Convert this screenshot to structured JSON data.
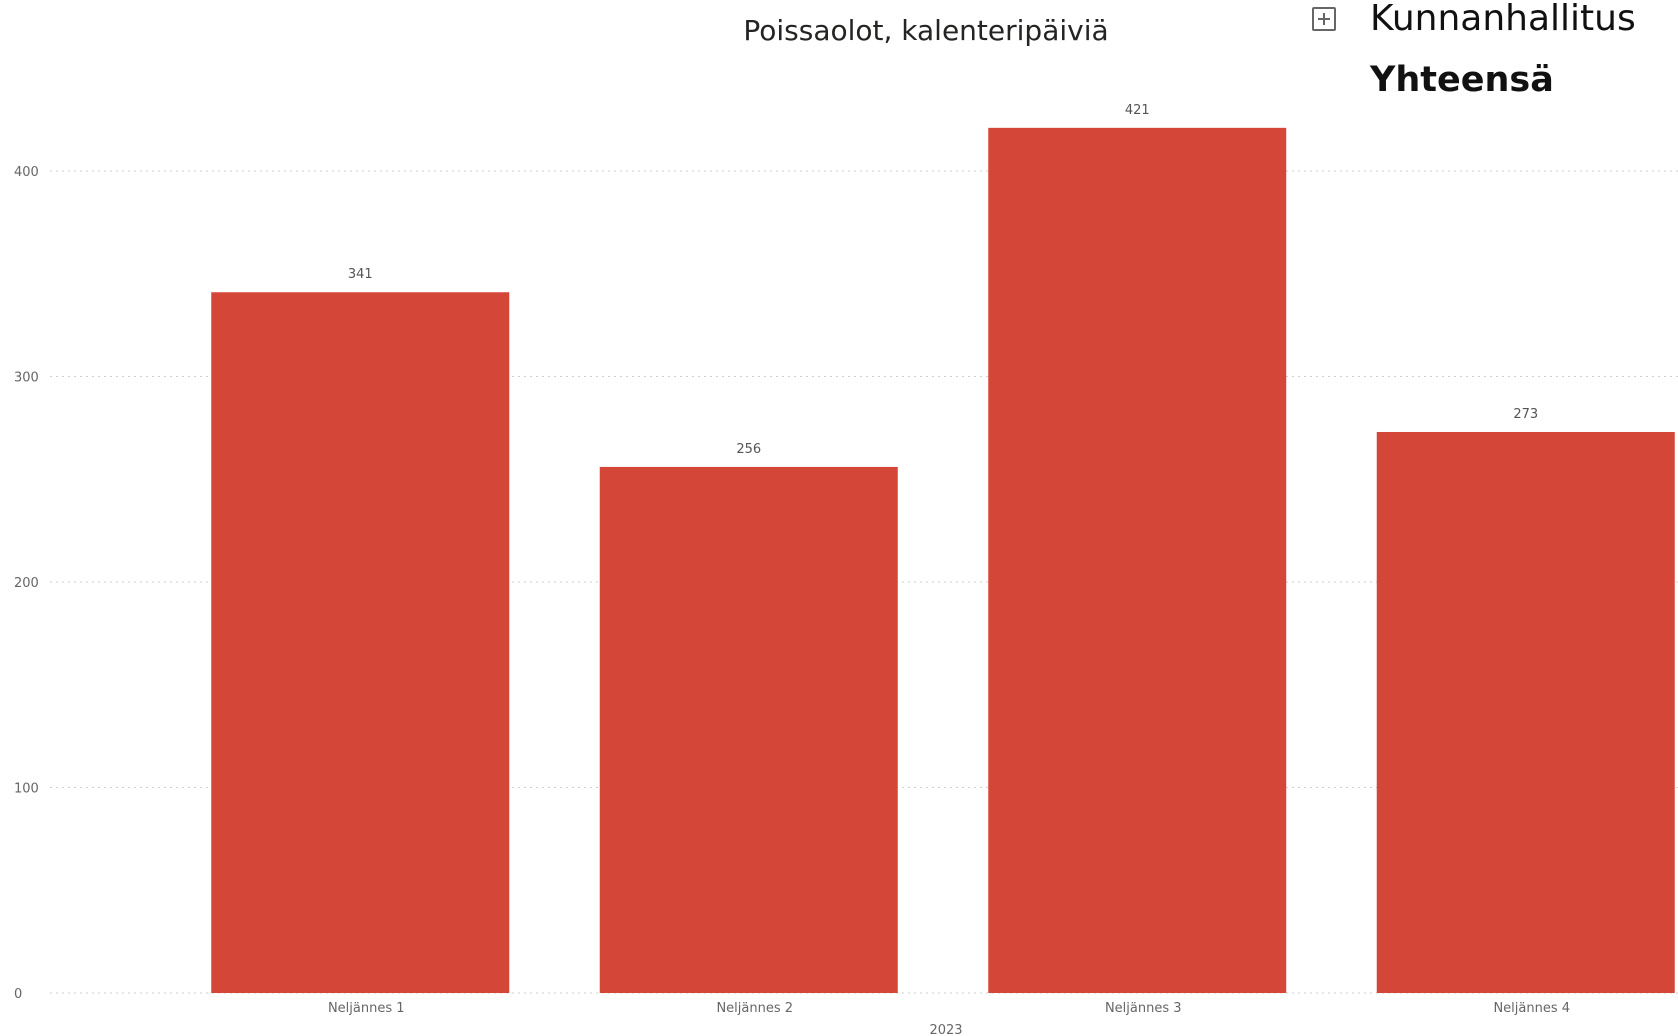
{
  "chart_data": {
    "type": "bar",
    "title": "Poissaolot, kalenteripäiviä",
    "categories": [
      "Neljännes 1",
      "Neljännes 2",
      "Neljännes 3",
      "Neljännes 4"
    ],
    "group_label": "2023",
    "values": [
      341,
      256,
      421,
      273
    ],
    "data_labels": [
      "341",
      "256",
      "421",
      "273"
    ],
    "ylim": [
      0,
      440
    ],
    "y_ticks": [
      0,
      100,
      200,
      300,
      400
    ],
    "grid": true,
    "bar_color": "#d44637",
    "xlabel": "",
    "ylabel": ""
  },
  "legend": {
    "items": [
      {
        "label": "Kunnanhallitus",
        "bold": false
      },
      {
        "label": "Yhteensä",
        "bold": true
      }
    ],
    "toggle_icon": "expand-plus-icon"
  }
}
